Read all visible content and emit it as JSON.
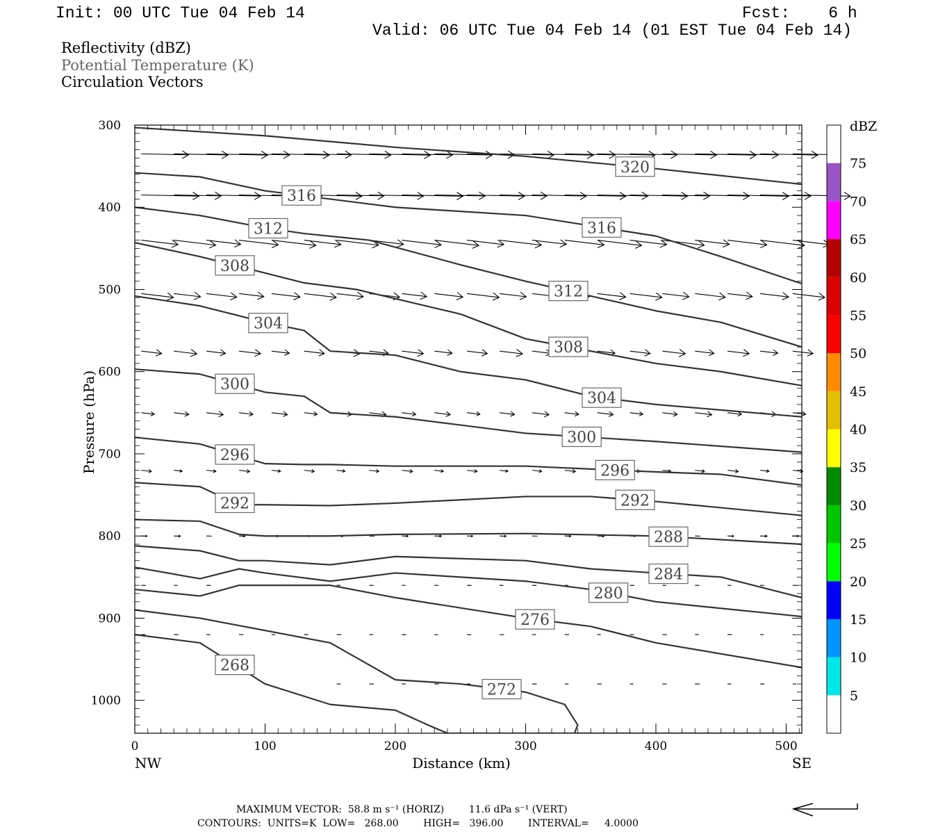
{
  "header": {
    "init": "Init: 00 UTC Tue 04 Feb 14",
    "fcst": "Fcst:    6 h",
    "valid": "Valid: 06 UTC Tue 04 Feb 14 (01 EST Tue 04 Feb 14)"
  },
  "fields": [
    {
      "label": "Reflectivity (dBZ)",
      "color": "#000000"
    },
    {
      "label": "Potential Temperature (K)",
      "color": "#666666"
    },
    {
      "label": "Circulation Vectors",
      "color": "#000000"
    }
  ],
  "footer": {
    "max_vector": "MAXIMUM VECTOR:  58.8 m s⁻¹ (HORIZ)        11.6 dPa s⁻¹ (VERT)",
    "contours": "CONTOURS:  UNITS=K  LOW=   268.00        HIGH=   396.00        INTERVAL=     4.0000"
  },
  "chart_data": {
    "type": "line",
    "title": "",
    "xlabel": "Distance (km)",
    "ylabel": "Pressure (hPa)",
    "x_left_label": "NW",
    "x_right_label": "SE",
    "xlim": [
      0,
      512
    ],
    "ylim": [
      300,
      1040
    ],
    "x_ticks": [
      0,
      100,
      200,
      300,
      400,
      500
    ],
    "y_ticks": [
      300,
      400,
      500,
      600,
      700,
      800,
      900,
      1000
    ],
    "contour_units": "K",
    "contour_interval": 4,
    "series": [
      {
        "name": "320",
        "x": [
          0,
          100,
          200,
          300,
          400,
          512
        ],
        "values": [
          303,
          313,
          327,
          338,
          353,
          372
        ]
      },
      {
        "name": "316",
        "x": [
          0,
          50,
          100,
          150,
          200,
          300,
          400,
          450,
          512
        ],
        "values": [
          358,
          363,
          380,
          390,
          400,
          410,
          435,
          460,
          493
        ]
      },
      {
        "name": "312",
        "x": [
          0,
          50,
          100,
          130,
          180,
          250,
          300,
          400,
          450,
          512
        ],
        "values": [
          400,
          410,
          425,
          432,
          440,
          470,
          490,
          526,
          540,
          570
        ]
      },
      {
        "name": "308",
        "x": [
          0,
          50,
          100,
          130,
          170,
          250,
          300,
          400,
          450,
          512
        ],
        "values": [
          443,
          460,
          480,
          492,
          500,
          530,
          560,
          590,
          600,
          617
        ]
      },
      {
        "name": "304",
        "x": [
          0,
          50,
          100,
          130,
          150,
          200,
          250,
          300,
          350,
          400,
          512
        ],
        "values": [
          508,
          520,
          540,
          550,
          575,
          580,
          600,
          610,
          630,
          640,
          655
        ]
      },
      {
        "name": "300",
        "x": [
          0,
          50,
          100,
          130,
          150,
          200,
          250,
          300,
          350,
          400,
          512
        ],
        "values": [
          597,
          603,
          625,
          630,
          650,
          655,
          665,
          675,
          680,
          685,
          698
        ]
      },
      {
        "name": "296",
        "x": [
          0,
          50,
          100,
          130,
          150,
          200,
          300,
          400,
          450,
          512
        ],
        "values": [
          680,
          688,
          712,
          713,
          713,
          715,
          715,
          722,
          725,
          738
        ]
      },
      {
        "name": "292",
        "x": [
          0,
          50,
          80,
          100,
          150,
          200,
          300,
          350,
          400,
          512
        ],
        "values": [
          735,
          740,
          762,
          762,
          763,
          760,
          752,
          752,
          758,
          775
        ]
      },
      {
        "name": "288",
        "x": [
          0,
          50,
          80,
          100,
          150,
          200,
          300,
          400,
          512
        ],
        "values": [
          780,
          782,
          798,
          800,
          800,
          798,
          797,
          800,
          810
        ]
      },
      {
        "name": "284",
        "x": [
          0,
          50,
          80,
          100,
          150,
          200,
          300,
          350,
          400,
          450,
          512
        ],
        "values": [
          812,
          818,
          830,
          830,
          835,
          825,
          830,
          840,
          845,
          850,
          875
        ]
      },
      {
        "name": "280",
        "x": [
          0,
          50,
          80,
          100,
          150,
          200,
          300,
          350,
          400,
          512
        ],
        "values": [
          838,
          852,
          840,
          845,
          855,
          845,
          855,
          865,
          880,
          898
        ]
      },
      {
        "name": "276",
        "x": [
          0,
          50,
          80,
          100,
          150,
          200,
          300,
          350,
          400,
          512
        ],
        "values": [
          865,
          873,
          860,
          860,
          860,
          875,
          900,
          910,
          930,
          960
        ]
      },
      {
        "name": "272",
        "x": [
          0,
          50,
          100,
          150,
          200,
          250,
          300,
          330,
          340,
          335
        ],
        "values": [
          890,
          900,
          915,
          930,
          975,
          980,
          990,
          1005,
          1030,
          1050
        ]
      },
      {
        "name": "268",
        "x": [
          0,
          50,
          100,
          150,
          200,
          225,
          240,
          300,
          400,
          512
        ],
        "values": [
          920,
          930,
          980,
          1005,
          1012,
          1030,
          1040,
          1040,
          1040,
          1040
        ]
      }
    ],
    "dbz_colorbar": {
      "label": "dBZ",
      "levels": [
        5,
        10,
        15,
        20,
        25,
        30,
        35,
        40,
        45,
        50,
        55,
        60,
        65,
        70,
        75
      ],
      "colors": [
        "#00e8e8",
        "#0096ff",
        "#0000ff",
        "#00ff00",
        "#00c800",
        "#008c00",
        "#ffff00",
        "#e6be00",
        "#ff8c00",
        "#ff0000",
        "#dc0000",
        "#b40000",
        "#ff00ff",
        "#9955c8",
        "#ffffff"
      ]
    },
    "grid": false,
    "legend_position": "right"
  }
}
